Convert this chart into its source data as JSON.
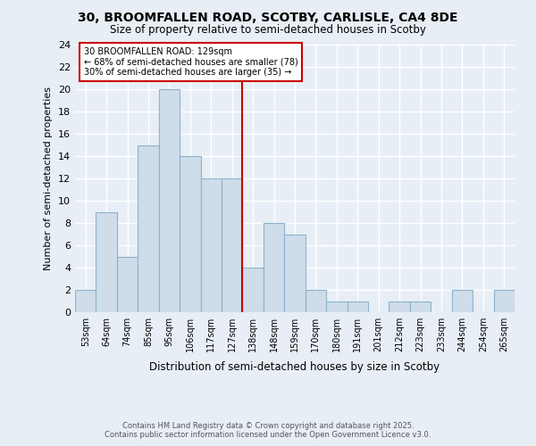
{
  "title_line1": "30, BROOMFALLEN ROAD, SCOTBY, CARLISLE, CA4 8DE",
  "title_line2": "Size of property relative to semi-detached houses in Scotby",
  "xlabel": "Distribution of semi-detached houses by size in Scotby",
  "ylabel": "Number of semi-detached properties",
  "bins": [
    "53sqm",
    "64sqm",
    "74sqm",
    "85sqm",
    "95sqm",
    "106sqm",
    "117sqm",
    "127sqm",
    "138sqm",
    "148sqm",
    "159sqm",
    "170sqm",
    "180sqm",
    "191sqm",
    "201sqm",
    "212sqm",
    "223sqm",
    "233sqm",
    "244sqm",
    "254sqm",
    "265sqm"
  ],
  "values": [
    2,
    9,
    5,
    15,
    20,
    14,
    12,
    12,
    4,
    8,
    7,
    2,
    1,
    1,
    0,
    1,
    1,
    0,
    2,
    0,
    2
  ],
  "bar_color": "#cfdcea",
  "bar_edge_color": "#8ab4cc",
  "ref_bin_index": 7,
  "ref_line_color": "#cc0000",
  "annotation_title": "30 BROOMFALLEN ROAD: 129sqm",
  "annotation_line2": "← 68% of semi-detached houses are smaller (78)",
  "annotation_line3": "30% of semi-detached houses are larger (35) →",
  "annotation_box_color": "#cc0000",
  "ylim": [
    0,
    24
  ],
  "yticks": [
    0,
    2,
    4,
    6,
    8,
    10,
    12,
    14,
    16,
    18,
    20,
    22,
    24
  ],
  "footer_line1": "Contains HM Land Registry data © Crown copyright and database right 2025.",
  "footer_line2": "Contains public sector information licensed under the Open Government Licence v3.0.",
  "background_color": "#e8eef5",
  "grid_color": "#ffffff"
}
